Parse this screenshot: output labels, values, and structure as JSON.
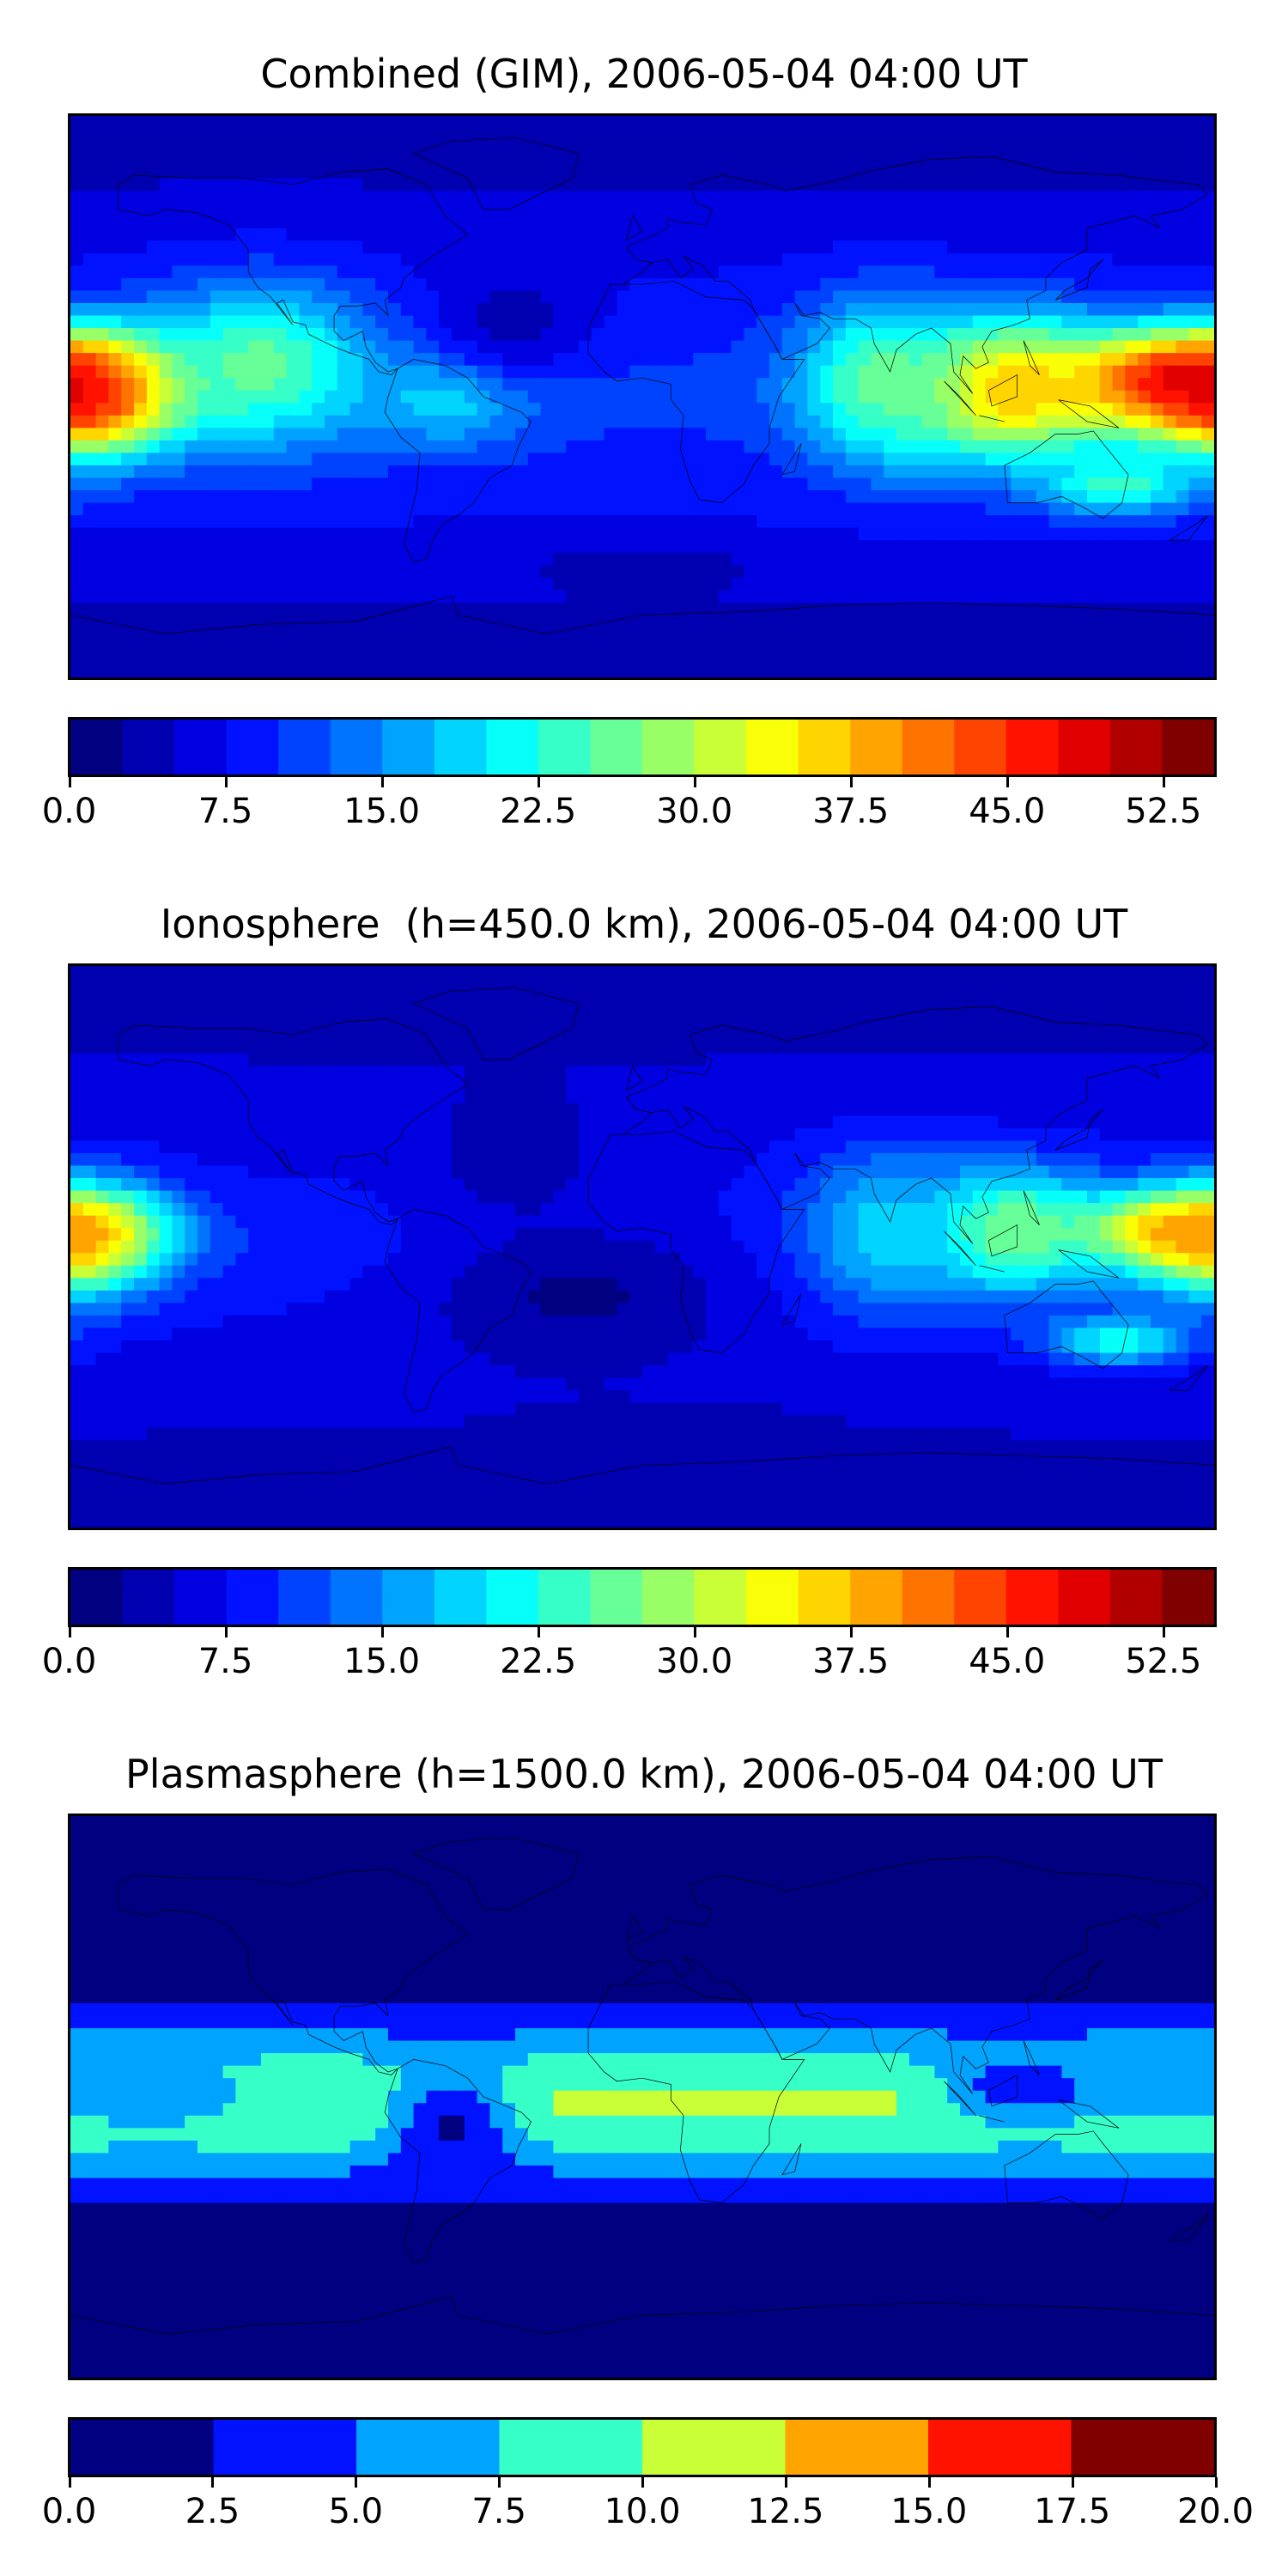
{
  "chart_data": [
    {
      "type": "heatmap",
      "title": "Combined (GIM), 2006-05-04 04:00 UT",
      "colorbar": {
        "levels": 22,
        "range": [
          0.0,
          55.0
        ],
        "tick_labels": [
          "0.0",
          "7.5",
          "15.0",
          "22.5",
          "30.0",
          "37.5",
          "45.0",
          "52.5"
        ],
        "tick_values": [
          0.0,
          7.5,
          15.0,
          22.5,
          30.0,
          37.5,
          45.0,
          52.5
        ]
      },
      "field": {
        "base": 11,
        "lat_gradient": -4,
        "blobs": [
          {
            "lon": -175,
            "lat": 0,
            "value": 46,
            "wlon": 28,
            "wlat": 18
          },
          {
            "lon": 170,
            "lat": 5,
            "value": 50,
            "wlon": 40,
            "wlat": 15
          },
          {
            "lon": 115,
            "lat": 2,
            "value": 38,
            "wlon": 35,
            "wlat": 22
          },
          {
            "lon": 75,
            "lat": 5,
            "value": 26,
            "wlon": 25,
            "wlat": 25
          },
          {
            "lon": -120,
            "lat": 10,
            "value": 26,
            "wlon": 35,
            "wlat": 25
          },
          {
            "lon": 150,
            "lat": -28,
            "value": 24,
            "wlon": 25,
            "wlat": 10
          },
          {
            "lon": -60,
            "lat": 0,
            "value": 20,
            "wlon": 25,
            "wlat": 15
          },
          {
            "lon": 0,
            "lat": -55,
            "value": 3,
            "wlon": 30,
            "wlat": 8
          },
          {
            "lon": -40,
            "lat": 25,
            "value": 4,
            "wlon": 25,
            "wlat": 20
          }
        ]
      }
    },
    {
      "type": "heatmap",
      "title": "Ionosphere  (h=450.0 km), 2006-05-04 04:00 UT",
      "colorbar": {
        "levels": 22,
        "range": [
          0.0,
          55.0
        ],
        "tick_labels": [
          "0.0",
          "7.5",
          "15.0",
          "22.5",
          "30.0",
          "37.5",
          "45.0",
          "52.5"
        ],
        "tick_values": [
          0.0,
          7.5,
          15.0,
          22.5,
          30.0,
          37.5,
          45.0,
          52.5
        ]
      },
      "field": {
        "base": 9,
        "lat_gradient": -3,
        "blobs": [
          {
            "lon": -178,
            "lat": 2,
            "value": 34,
            "wlon": 25,
            "wlat": 18
          },
          {
            "lon": 170,
            "lat": 5,
            "value": 40,
            "wlon": 35,
            "wlat": 12
          },
          {
            "lon": 115,
            "lat": 5,
            "value": 28,
            "wlon": 30,
            "wlat": 20
          },
          {
            "lon": 75,
            "lat": 5,
            "value": 19,
            "wlon": 25,
            "wlat": 25
          },
          {
            "lon": 150,
            "lat": -30,
            "value": 22,
            "wlon": 22,
            "wlat": 8
          },
          {
            "lon": -20,
            "lat": -15,
            "value": 2,
            "wlon": 50,
            "wlat": 25
          },
          {
            "lon": -40,
            "lat": 30,
            "value": 3,
            "wlon": 25,
            "wlat": 20
          },
          {
            "lon": 10,
            "lat": -60,
            "value": 3,
            "wlon": 40,
            "wlat": 8
          }
        ]
      }
    },
    {
      "type": "heatmap",
      "title": "Plasmasphere (h=1500.0 km), 2006-05-04 04:00 UT",
      "colorbar": {
        "levels": 8,
        "range": [
          0.0,
          20.0
        ],
        "tick_labels": [
          "0.0",
          "2.5",
          "5.0",
          "7.5",
          "10.0",
          "12.5",
          "15.0",
          "17.5",
          "20.0"
        ],
        "tick_values": [
          0.0,
          2.5,
          5.0,
          7.5,
          10.0,
          12.5,
          15.0,
          17.5,
          20.0
        ]
      },
      "field": {
        "base": 0,
        "lat_gradient": 0,
        "band": {
          "lat": -2,
          "value": 10.5,
          "wlat": 26
        },
        "blobs": [
          {
            "lon": -150,
            "lat": 0,
            "value": 6.5,
            "wlon": 40,
            "wlat": 14
          },
          {
            "lon": 170,
            "lat": 5,
            "value": 5.5,
            "wlon": 30,
            "wlat": 12
          },
          {
            "lon": 120,
            "lat": 3,
            "value": 3,
            "wlon": 25,
            "wlat": 12
          },
          {
            "lon": -60,
            "lat": -10,
            "value": 2,
            "wlon": 20,
            "wlat": 20
          }
        ]
      }
    }
  ]
}
